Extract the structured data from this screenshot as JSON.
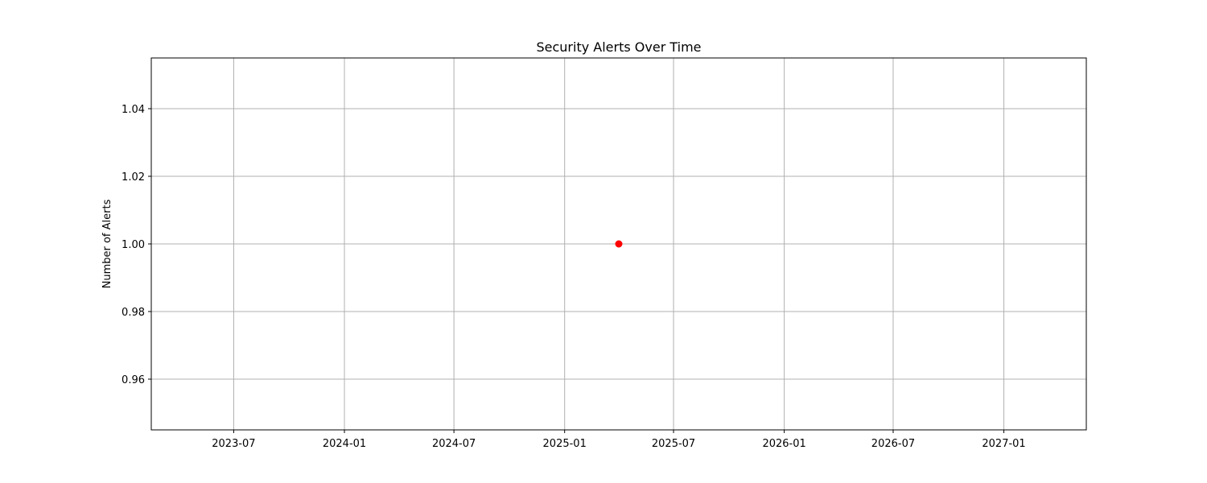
{
  "chart_data": {
    "type": "scatter",
    "title": "Security Alerts Over Time",
    "xlabel": "",
    "ylabel": "Number of Alerts",
    "xlim": [
      "2023-02-14",
      "2027-05-18"
    ],
    "ylim": [
      0.945,
      1.055
    ],
    "x_ticks": [
      "2023-07",
      "2024-01",
      "2024-07",
      "2025-01",
      "2025-07",
      "2026-01",
      "2026-07",
      "2027-01"
    ],
    "y_ticks": [
      "0.96",
      "0.98",
      "1.00",
      "1.02",
      "1.04"
    ],
    "grid": true,
    "points": [
      {
        "x": "2025-04-01",
        "y": 1.0
      }
    ],
    "marker_color": "#ff0000"
  }
}
